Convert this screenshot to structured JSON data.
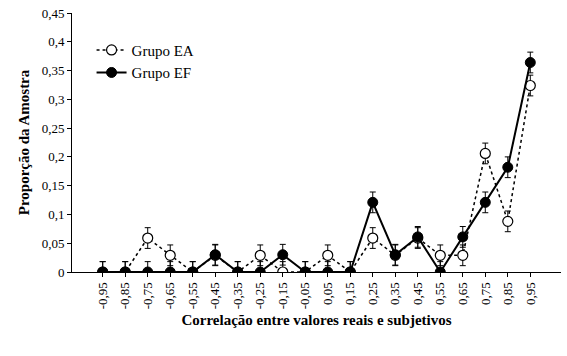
{
  "chart_data": {
    "type": "line",
    "x_label": "Correlação entre valores reais e subjetivos",
    "y_label": "Proporção da Amostra",
    "categories": [
      "-0,95",
      "-0,85",
      "-0,75",
      "-0,65",
      "-0,55",
      "-0,45",
      "-0,35",
      "-0,25",
      "-0,15",
      "-0,05",
      "0,05",
      "0,15",
      "0,25",
      "0,35",
      "0,45",
      "0,55",
      "0,65",
      "0,75",
      "0,85",
      "0,95"
    ],
    "series": [
      {
        "name": "Grupo EA",
        "color": "#000000",
        "marker": "open-circle",
        "line_style": "dotted",
        "values": [
          0,
          0,
          0.059,
          0.029,
          0,
          0.029,
          0,
          0.029,
          0,
          0,
          0.029,
          0,
          0.059,
          0.029,
          0.059,
          0.029,
          0.029,
          0.206,
          0.088,
          0.324
        ],
        "errors": [
          0.018,
          0.018,
          0.018,
          0.018,
          0.018,
          0.018,
          0.018,
          0.018,
          0.018,
          0.018,
          0.018,
          0.018,
          0.018,
          0.018,
          0.018,
          0.018,
          0.018,
          0.018,
          0.018,
          0.018
        ]
      },
      {
        "name": "Grupo EF",
        "color": "#000000",
        "marker": "circle",
        "line_style": "solid",
        "values": [
          0,
          0,
          0,
          0,
          0,
          0.03,
          0,
          0,
          0.03,
          0,
          0,
          0,
          0.121,
          0.03,
          0.061,
          0,
          0.061,
          0.121,
          0.182,
          0.364
        ],
        "errors": [
          0.018,
          0.018,
          0.018,
          0.018,
          0.018,
          0.018,
          0.018,
          0.018,
          0.018,
          0.018,
          0.018,
          0.018,
          0.018,
          0.018,
          0.018,
          0.018,
          0.018,
          0.018,
          0.018,
          0.018
        ]
      }
    ],
    "ylim": [
      0,
      0.45
    ],
    "yticks": [
      0,
      {
        "value": 0.05,
        "label": "0,05"
      },
      {
        "value": 0.1,
        "label": "0,1"
      },
      {
        "value": 0.15,
        "label": "0,15"
      },
      {
        "value": 0.2,
        "label": "0,2"
      },
      {
        "value": 0.25,
        "label": "0,25"
      },
      {
        "value": 0.3,
        "label": "0,3"
      },
      {
        "value": 0.35,
        "label": "0,35"
      },
      {
        "value": 0.4,
        "label": "0,4"
      },
      {
        "value": 0.45,
        "label": "0,45"
      }
    ],
    "grid": false,
    "legend": "upper left"
  }
}
